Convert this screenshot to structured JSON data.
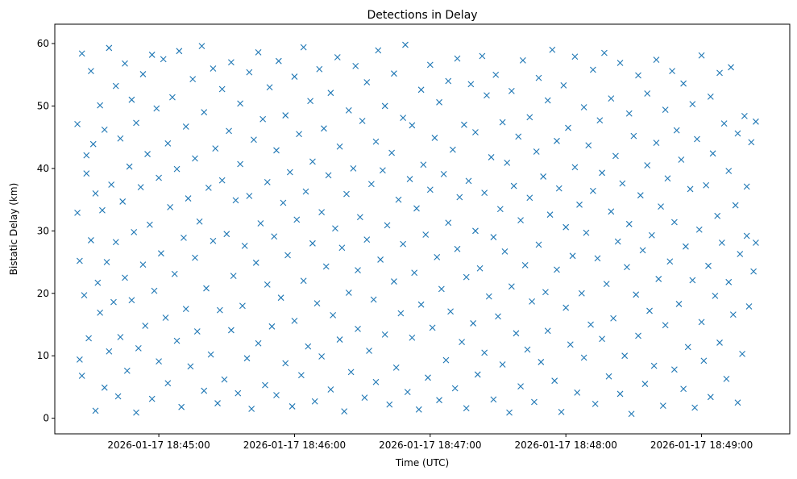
{
  "chart_data": {
    "type": "scatter",
    "title": "Detections in Delay",
    "xlabel": "Time (UTC)",
    "ylabel": "Bistatic Delay (km)",
    "x_units": "seconds after 2026-01-17 18:44:00 UTC",
    "xlim": [
      14,
      339
    ],
    "ylim": [
      -2.5,
      63.1
    ],
    "grid": false,
    "marker": "x",
    "color": "#1f77b4",
    "x_ticks": [
      {
        "value": 60,
        "label": "2026-01-17 18:45:00"
      },
      {
        "value": 120,
        "label": "2026-01-17 18:46:00"
      },
      {
        "value": 180,
        "label": "2026-01-17 18:47:00"
      },
      {
        "value": 240,
        "label": "2026-01-17 18:48:00"
      },
      {
        "value": 300,
        "label": "2026-01-17 18:49:00"
      }
    ],
    "y_ticks": [
      {
        "value": 0,
        "label": "0"
      },
      {
        "value": 10,
        "label": "10"
      },
      {
        "value": 20,
        "label": "20"
      },
      {
        "value": 30,
        "label": "30"
      },
      {
        "value": 40,
        "label": "40"
      },
      {
        "value": 50,
        "label": "50"
      },
      {
        "value": 60,
        "label": "60"
      }
    ],
    "points": [
      [
        24,
        47.1
      ],
      [
        24,
        32.9
      ],
      [
        25,
        9.4
      ],
      [
        25,
        25.2
      ],
      [
        26,
        58.4
      ],
      [
        26,
        6.8
      ],
      [
        27,
        19.7
      ],
      [
        28,
        39.2
      ],
      [
        28,
        42.1
      ],
      [
        29,
        12.8
      ],
      [
        30,
        55.6
      ],
      [
        30,
        28.5
      ],
      [
        31,
        43.9
      ],
      [
        32,
        1.2
      ],
      [
        32,
        36.0
      ],
      [
        33,
        21.7
      ],
      [
        34,
        50.1
      ],
      [
        34,
        16.9
      ],
      [
        35,
        33.3
      ],
      [
        36,
        46.2
      ],
      [
        36,
        4.9
      ],
      [
        37,
        25.0
      ],
      [
        38,
        59.3
      ],
      [
        38,
        10.7
      ],
      [
        39,
        37.4
      ],
      [
        40,
        18.6
      ],
      [
        41,
        53.2
      ],
      [
        41,
        28.2
      ],
      [
        42,
        3.5
      ],
      [
        43,
        44.8
      ],
      [
        43,
        13.0
      ],
      [
        44,
        34.7
      ],
      [
        45,
        56.8
      ],
      [
        45,
        22.5
      ],
      [
        46,
        7.6
      ],
      [
        47,
        40.3
      ],
      [
        48,
        51.0
      ],
      [
        48,
        18.9
      ],
      [
        49,
        29.8
      ],
      [
        50,
        0.9
      ],
      [
        50,
        47.3
      ],
      [
        51,
        11.2
      ],
      [
        52,
        37.0
      ],
      [
        53,
        55.1
      ],
      [
        53,
        24.6
      ],
      [
        54,
        14.8
      ],
      [
        55,
        42.3
      ],
      [
        56,
        31.0
      ],
      [
        57,
        3.1
      ],
      [
        57,
        58.2
      ],
      [
        58,
        20.4
      ],
      [
        59,
        49.6
      ],
      [
        60,
        9.1
      ],
      [
        60,
        38.5
      ],
      [
        61,
        26.4
      ],
      [
        62,
        57.5
      ],
      [
        63,
        16.1
      ],
      [
        64,
        44.0
      ],
      [
        64,
        5.6
      ],
      [
        65,
        33.8
      ],
      [
        66,
        51.4
      ],
      [
        67,
        23.1
      ],
      [
        68,
        12.4
      ],
      [
        68,
        39.9
      ],
      [
        69,
        58.8
      ],
      [
        70,
        1.8
      ],
      [
        71,
        28.9
      ],
      [
        72,
        46.7
      ],
      [
        72,
        17.5
      ],
      [
        73,
        35.2
      ],
      [
        74,
        8.3
      ],
      [
        75,
        54.3
      ],
      [
        76,
        25.7
      ],
      [
        76,
        41.6
      ],
      [
        77,
        13.9
      ],
      [
        78,
        31.5
      ],
      [
        79,
        59.6
      ],
      [
        80,
        4.4
      ],
      [
        80,
        49.0
      ],
      [
        81,
        20.8
      ],
      [
        82,
        36.9
      ],
      [
        83,
        10.2
      ],
      [
        84,
        56.0
      ],
      [
        84,
        28.4
      ],
      [
        85,
        43.2
      ],
      [
        86,
        2.4
      ],
      [
        87,
        17.3
      ],
      [
        88,
        38.1
      ],
      [
        88,
        52.7
      ],
      [
        89,
        6.2
      ],
      [
        90,
        29.5
      ],
      [
        91,
        46.0
      ],
      [
        92,
        14.1
      ],
      [
        92,
        57.0
      ],
      [
        93,
        22.8
      ],
      [
        94,
        34.9
      ],
      [
        95,
        4.0
      ],
      [
        96,
        50.4
      ],
      [
        96,
        40.7
      ],
      [
        97,
        18.0
      ],
      [
        98,
        27.6
      ],
      [
        99,
        9.6
      ],
      [
        100,
        55.4
      ],
      [
        100,
        35.6
      ],
      [
        101,
        1.5
      ],
      [
        102,
        44.6
      ],
      [
        103,
        24.9
      ],
      [
        104,
        12.0
      ],
      [
        104,
        58.6
      ],
      [
        105,
        31.2
      ],
      [
        106,
        47.9
      ],
      [
        107,
        5.3
      ],
      [
        108,
        21.4
      ],
      [
        108,
        37.8
      ],
      [
        109,
        53.0
      ],
      [
        110,
        14.7
      ],
      [
        111,
        29.1
      ],
      [
        112,
        42.9
      ],
      [
        112,
        3.7
      ],
      [
        113,
        57.2
      ],
      [
        114,
        19.3
      ],
      [
        115,
        34.5
      ],
      [
        116,
        8.8
      ],
      [
        116,
        48.5
      ],
      [
        117,
        26.1
      ],
      [
        118,
        39.4
      ],
      [
        119,
        1.9
      ],
      [
        120,
        54.7
      ],
      [
        120,
        15.6
      ],
      [
        121,
        31.8
      ],
      [
        122,
        45.5
      ],
      [
        123,
        6.9
      ],
      [
        124,
        22.0
      ],
      [
        124,
        59.4
      ],
      [
        125,
        36.3
      ],
      [
        126,
        11.5
      ],
      [
        127,
        50.8
      ],
      [
        128,
        28.0
      ],
      [
        128,
        41.1
      ],
      [
        129,
        2.7
      ],
      [
        130,
        18.4
      ],
      [
        131,
        55.9
      ],
      [
        132,
        33.0
      ],
      [
        132,
        9.9
      ],
      [
        133,
        46.4
      ],
      [
        134,
        24.3
      ],
      [
        135,
        38.9
      ],
      [
        136,
        4.6
      ],
      [
        136,
        52.1
      ],
      [
        137,
        16.5
      ],
      [
        138,
        30.4
      ],
      [
        139,
        57.8
      ],
      [
        140,
        12.6
      ],
      [
        140,
        43.5
      ],
      [
        141,
        27.3
      ],
      [
        142,
        1.1
      ],
      [
        143,
        35.9
      ],
      [
        144,
        49.3
      ],
      [
        144,
        20.1
      ],
      [
        145,
        7.4
      ],
      [
        146,
        40.0
      ],
      [
        147,
        56.4
      ],
      [
        148,
        23.7
      ],
      [
        148,
        14.3
      ],
      [
        149,
        32.2
      ],
      [
        150,
        47.6
      ],
      [
        151,
        3.3
      ],
      [
        152,
        28.6
      ],
      [
        152,
        53.8
      ],
      [
        153,
        10.8
      ],
      [
        154,
        37.5
      ],
      [
        155,
        19.0
      ],
      [
        156,
        44.3
      ],
      [
        156,
        5.8
      ],
      [
        157,
        58.9
      ],
      [
        158,
        25.4
      ],
      [
        159,
        39.7
      ],
      [
        160,
        13.4
      ],
      [
        160,
        50.0
      ],
      [
        161,
        30.9
      ],
      [
        162,
        2.2
      ],
      [
        163,
        42.5
      ],
      [
        164,
        21.9
      ],
      [
        164,
        55.2
      ],
      [
        165,
        8.1
      ],
      [
        166,
        35.0
      ],
      [
        167,
        16.8
      ],
      [
        168,
        48.1
      ],
      [
        168,
        27.9
      ],
      [
        169,
        59.8
      ],
      [
        170,
        4.2
      ],
      [
        171,
        38.3
      ],
      [
        172,
        12.9
      ],
      [
        172,
        46.9
      ],
      [
        173,
        23.3
      ],
      [
        174,
        33.6
      ],
      [
        175,
        1.4
      ],
      [
        176,
        52.6
      ],
      [
        176,
        18.2
      ],
      [
        177,
        40.6
      ],
      [
        178,
        29.4
      ],
      [
        179,
        6.5
      ],
      [
        180,
        56.6
      ],
      [
        180,
        36.6
      ],
      [
        181,
        14.5
      ],
      [
        182,
        44.9
      ],
      [
        183,
        25.8
      ],
      [
        184,
        2.9
      ],
      [
        184,
        50.6
      ],
      [
        185,
        20.7
      ],
      [
        186,
        39.1
      ],
      [
        187,
        9.3
      ],
      [
        188,
        54.0
      ],
      [
        188,
        31.3
      ],
      [
        189,
        17.1
      ],
      [
        190,
        43.0
      ],
      [
        191,
        4.8
      ],
      [
        192,
        27.1
      ],
      [
        192,
        57.6
      ],
      [
        193,
        35.4
      ],
      [
        194,
        12.2
      ],
      [
        195,
        47.0
      ],
      [
        196,
        22.6
      ],
      [
        196,
        1.6
      ],
      [
        197,
        38.0
      ],
      [
        198,
        53.5
      ],
      [
        199,
        15.2
      ],
      [
        200,
        30.0
      ],
      [
        200,
        45.8
      ],
      [
        201,
        7.0
      ],
      [
        202,
        24.0
      ],
      [
        203,
        58.0
      ],
      [
        204,
        36.1
      ],
      [
        204,
        10.5
      ],
      [
        205,
        51.7
      ],
      [
        206,
        19.5
      ],
      [
        207,
        41.8
      ],
      [
        208,
        3.0
      ],
      [
        208,
        29.0
      ],
      [
        209,
        55.0
      ],
      [
        210,
        16.3
      ],
      [
        211,
        33.5
      ],
      [
        212,
        47.4
      ],
      [
        212,
        8.6
      ],
      [
        213,
        26.7
      ],
      [
        214,
        40.9
      ],
      [
        215,
        0.9
      ],
      [
        216,
        52.4
      ],
      [
        216,
        21.1
      ],
      [
        217,
        37.2
      ],
      [
        218,
        13.6
      ],
      [
        219,
        45.1
      ],
      [
        220,
        5.1
      ],
      [
        220,
        31.7
      ],
      [
        221,
        57.3
      ],
      [
        222,
        24.5
      ],
      [
        223,
        11.0
      ],
      [
        224,
        48.2
      ],
      [
        224,
        35.3
      ],
      [
        225,
        18.7
      ],
      [
        226,
        2.6
      ],
      [
        227,
        42.7
      ],
      [
        228,
        54.5
      ],
      [
        228,
        27.8
      ],
      [
        229,
        9.0
      ],
      [
        230,
        38.7
      ],
      [
        231,
        20.2
      ],
      [
        232,
        50.9
      ],
      [
        232,
        14.0
      ],
      [
        233,
        32.6
      ],
      [
        234,
        59.0
      ],
      [
        235,
        6.0
      ],
      [
        236,
        44.4
      ],
      [
        236,
        23.8
      ],
      [
        237,
        36.8
      ],
      [
        238,
        1.0
      ],
      [
        239,
        53.3
      ],
      [
        240,
        17.7
      ],
      [
        240,
        30.6
      ],
      [
        241,
        46.5
      ],
      [
        242,
        11.8
      ],
      [
        243,
        26.0
      ],
      [
        244,
        57.9
      ],
      [
        244,
        40.2
      ],
      [
        245,
        4.1
      ],
      [
        246,
        34.2
      ],
      [
        247,
        20.0
      ],
      [
        248,
        49.8
      ],
      [
        248,
        9.7
      ],
      [
        249,
        29.7
      ],
      [
        250,
        43.7
      ],
      [
        251,
        15.0
      ],
      [
        252,
        55.8
      ],
      [
        252,
        36.4
      ],
      [
        253,
        2.3
      ],
      [
        254,
        25.6
      ],
      [
        255,
        47.7
      ],
      [
        256,
        12.7
      ],
      [
        256,
        39.3
      ],
      [
        257,
        58.5
      ],
      [
        258,
        21.5
      ],
      [
        259,
        6.7
      ],
      [
        260,
        33.1
      ],
      [
        260,
        51.2
      ],
      [
        261,
        16.0
      ],
      [
        262,
        42.0
      ],
      [
        263,
        28.3
      ],
      [
        264,
        3.9
      ],
      [
        264,
        56.9
      ],
      [
        265,
        37.6
      ],
      [
        266,
        10.0
      ],
      [
        267,
        24.2
      ],
      [
        268,
        48.8
      ],
      [
        268,
        31.1
      ],
      [
        269,
        0.7
      ],
      [
        270,
        45.2
      ],
      [
        271,
        19.8
      ],
      [
        272,
        54.9
      ],
      [
        272,
        13.2
      ],
      [
        273,
        35.7
      ],
      [
        274,
        26.9
      ],
      [
        275,
        5.5
      ],
      [
        276,
        52.0
      ],
      [
        276,
        40.5
      ],
      [
        277,
        17.2
      ],
      [
        278,
        29.3
      ],
      [
        279,
        8.4
      ],
      [
        280,
        57.4
      ],
      [
        280,
        44.1
      ],
      [
        281,
        22.3
      ],
      [
        282,
        33.9
      ],
      [
        283,
        2.0
      ],
      [
        284,
        49.4
      ],
      [
        284,
        14.9
      ],
      [
        285,
        38.4
      ],
      [
        286,
        25.1
      ],
      [
        287,
        55.6
      ],
      [
        288,
        7.8
      ],
      [
        288,
        31.4
      ],
      [
        289,
        46.1
      ],
      [
        290,
        18.3
      ],
      [
        291,
        41.4
      ],
      [
        292,
        4.7
      ],
      [
        292,
        53.6
      ],
      [
        293,
        27.5
      ],
      [
        294,
        11.4
      ],
      [
        295,
        36.7
      ],
      [
        296,
        50.3
      ],
      [
        296,
        22.1
      ],
      [
        297,
        1.7
      ],
      [
        298,
        44.7
      ],
      [
        299,
        30.2
      ],
      [
        300,
        15.4
      ],
      [
        300,
        58.1
      ],
      [
        301,
        9.2
      ],
      [
        302,
        37.3
      ],
      [
        303,
        24.4
      ],
      [
        304,
        51.5
      ],
      [
        304,
        3.4
      ],
      [
        305,
        42.4
      ],
      [
        306,
        19.6
      ],
      [
        307,
        32.4
      ],
      [
        308,
        55.3
      ],
      [
        308,
        12.1
      ],
      [
        309,
        28.1
      ],
      [
        310,
        47.2
      ],
      [
        311,
        6.3
      ],
      [
        312,
        39.6
      ],
      [
        312,
        21.8
      ],
      [
        313,
        56.2
      ],
      [
        314,
        16.6
      ],
      [
        315,
        34.1
      ],
      [
        316,
        2.5
      ],
      [
        316,
        45.6
      ],
      [
        317,
        26.3
      ],
      [
        318,
        10.3
      ],
      [
        319,
        48.4
      ],
      [
        320,
        29.2
      ],
      [
        320,
        37.1
      ],
      [
        321,
        17.9
      ],
      [
        322,
        44.2
      ],
      [
        323,
        23.5
      ],
      [
        324,
        47.5
      ],
      [
        324,
        28.1
      ]
    ]
  }
}
